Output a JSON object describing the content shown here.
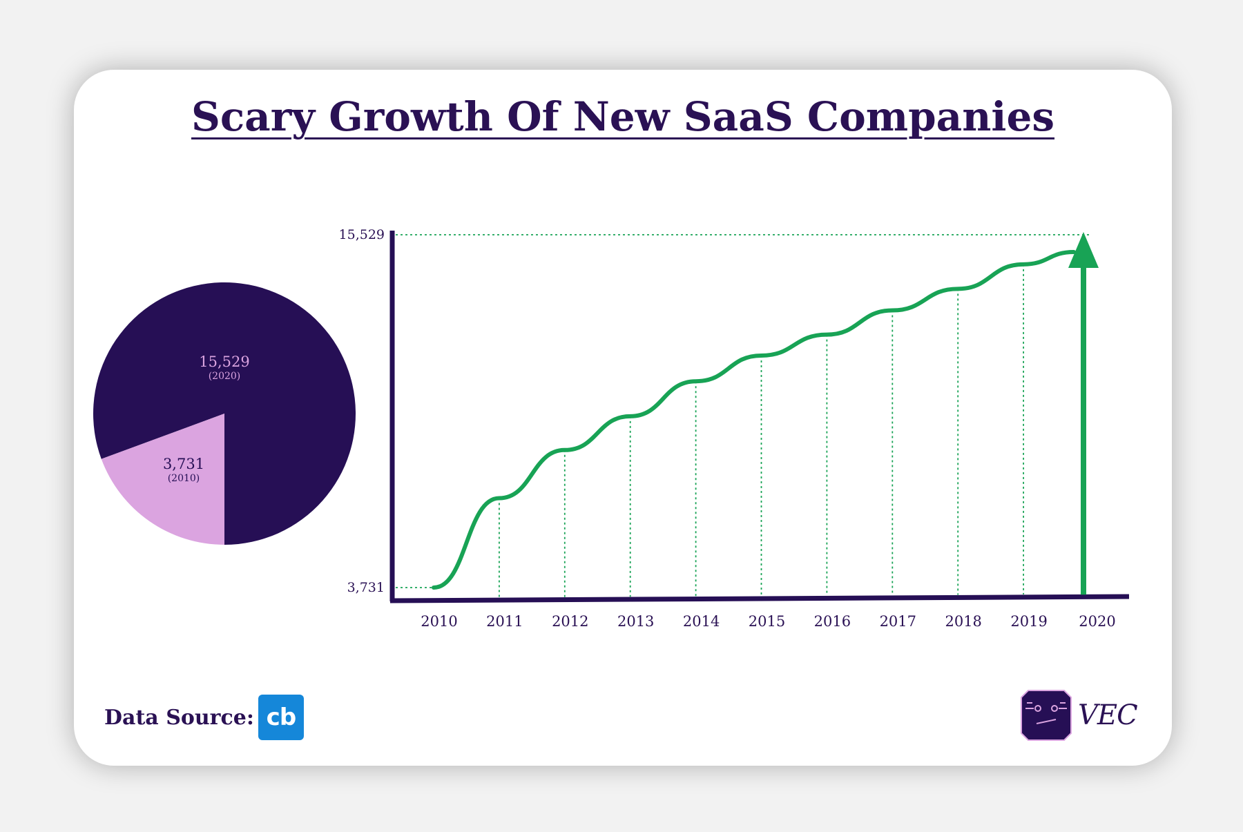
{
  "title": "Scary Growth Of New SaaS Companies",
  "footer": {
    "source_label": "Data Source:",
    "source_logo_text": "cb",
    "brand_text": "VEC"
  },
  "colors": {
    "dark_purple": "#260f55",
    "light_purple": "#dba4e0",
    "green": "#18a355",
    "text": "#2a1154"
  },
  "chart_data": [
    {
      "type": "pie",
      "slices": [
        {
          "value": 15529,
          "label": "15,529",
          "sublabel": "(2020)",
          "color": "#260f55"
        },
        {
          "value": 3731,
          "label": "3,731",
          "sublabel": "(2010)",
          "color": "#dba4e0"
        }
      ]
    },
    {
      "type": "line",
      "x": [
        2010,
        2011,
        2012,
        2013,
        2014,
        2015,
        2016,
        2017,
        2018,
        2019,
        2020
      ],
      "x_tick_labels": [
        "2010",
        "2011",
        "2012",
        "2013",
        "2014",
        "2015",
        "2016",
        "2017",
        "2018",
        "2019",
        "2020"
      ],
      "y_ticks": [
        3731,
        15529
      ],
      "y_tick_labels": [
        "3,731",
        "15,529"
      ],
      "ylim": [
        3731,
        15529
      ],
      "series": [
        {
          "values": [
            3731,
            6720,
            8330,
            9460,
            10630,
            11490,
            12190,
            13000,
            13720,
            14540,
            15529
          ]
        }
      ],
      "grid": false,
      "arrow_at_end": true
    }
  ]
}
